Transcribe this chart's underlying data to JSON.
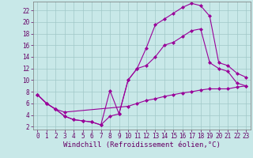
{
  "bg_color": "#c8e8e8",
  "grid_color": "#a0c8c8",
  "line_color": "#990099",
  "xlim": [
    -0.5,
    23.5
  ],
  "ylim": [
    1.5,
    23.5
  ],
  "xticks": [
    0,
    1,
    2,
    3,
    4,
    5,
    6,
    7,
    8,
    9,
    10,
    11,
    12,
    13,
    14,
    15,
    16,
    17,
    18,
    19,
    20,
    21,
    22,
    23
  ],
  "yticks": [
    2,
    4,
    6,
    8,
    10,
    12,
    14,
    16,
    18,
    20,
    22
  ],
  "line1_x": [
    0,
    1,
    2,
    3,
    4,
    5,
    6,
    7,
    8,
    9,
    10,
    11,
    12,
    13,
    14,
    15,
    16,
    17,
    18,
    19,
    20,
    21,
    22,
    23
  ],
  "line1_y": [
    7.5,
    6.0,
    5.0,
    3.8,
    3.2,
    3.0,
    2.8,
    2.3,
    8.2,
    4.2,
    10.0,
    12.0,
    15.5,
    19.5,
    20.5,
    21.5,
    22.5,
    23.2,
    22.8,
    21.0,
    13.0,
    12.5,
    11.2,
    10.5
  ],
  "line2_x": [
    0,
    1,
    2,
    3,
    4,
    5,
    6,
    7,
    8,
    9,
    10,
    11,
    12,
    13,
    14,
    15,
    16,
    17,
    18,
    19,
    20,
    21,
    22,
    23
  ],
  "line2_y": [
    7.5,
    6.0,
    5.0,
    3.8,
    3.2,
    3.0,
    2.8,
    2.3,
    3.8,
    4.2,
    10.0,
    12.0,
    12.5,
    14.0,
    16.0,
    16.5,
    17.5,
    18.5,
    18.8,
    13.0,
    12.0,
    11.5,
    9.5,
    9.0
  ],
  "line3_x": [
    0,
    1,
    2,
    3,
    10,
    11,
    12,
    13,
    14,
    15,
    16,
    17,
    18,
    19,
    20,
    21,
    22,
    23
  ],
  "line3_y": [
    7.5,
    6.0,
    5.0,
    4.5,
    5.5,
    6.0,
    6.5,
    6.8,
    7.2,
    7.5,
    7.8,
    8.0,
    8.3,
    8.5,
    8.5,
    8.5,
    8.8,
    9.0
  ],
  "xlabel": "Windchill (Refroidissement éolien,°C)",
  "marker": "+",
  "markersize": 3,
  "linewidth": 0.8,
  "tick_fontsize": 5.5,
  "label_fontsize": 6.5
}
